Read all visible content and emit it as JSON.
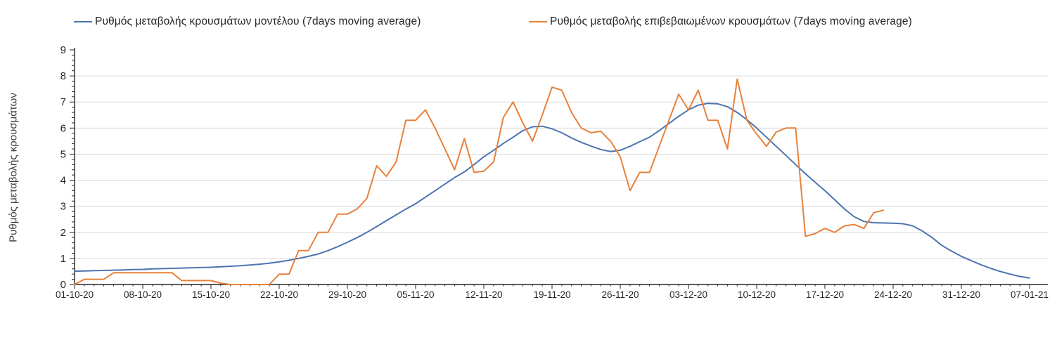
{
  "legend": {
    "items": [
      {
        "id": "model",
        "label": "Ρυθμός μεταβολής κρουσμάτων μοντέλου (7days moving average)",
        "color": "#4d74b0"
      },
      {
        "id": "confirmed",
        "label": "Ρυθμός μεταβολής επιβεβαιωμένων κρουσμάτων (7days moving average)",
        "color": "#e7813b"
      }
    ]
  },
  "axes": {
    "y_title": "Ρυθμός μεταβολής κρουσμάτων"
  },
  "colors": {
    "model_line": "#4d74b0",
    "confirmed_line": "#e7813b",
    "gridline": "#d9d9d9",
    "axis": "#262626",
    "tick_text": "#262626"
  },
  "chart_data": {
    "type": "line",
    "title": "",
    "xlabel": "",
    "ylabel": "Ρυθμός μεταβολής κρουσμάτων",
    "ylim": [
      0,
      9
    ],
    "y_ticks": [
      0,
      1,
      2,
      3,
      4,
      5,
      6,
      7,
      8,
      9
    ],
    "grid": "horizontal",
    "legend_position": "top",
    "x_unit": "days since 01-10-20 (daily points)",
    "x_tick_days": [
      0,
      7,
      14,
      21,
      28,
      35,
      42,
      49,
      56,
      63,
      70,
      77,
      84,
      91,
      98
    ],
    "x_tick_labels": [
      "01-10-20",
      "08-10-20",
      "15-10-20",
      "22-10-20",
      "29-10-20",
      "05-11-20",
      "12-11-20",
      "19-11-20",
      "26-11-20",
      "03-12-20",
      "10-12-20",
      "17-12-20",
      "24-12-20",
      "31-12-20",
      "07-01-21"
    ],
    "series": [
      {
        "name": "Ρυθμός μεταβολής κρουσμάτων μοντέλου (7days moving average)",
        "color": "#4d74b0",
        "start_day": 0,
        "values": [
          0.51,
          0.52,
          0.53,
          0.54,
          0.55,
          0.56,
          0.57,
          0.58,
          0.6,
          0.61,
          0.62,
          0.63,
          0.64,
          0.65,
          0.66,
          0.68,
          0.7,
          0.72,
          0.75,
          0.78,
          0.82,
          0.87,
          0.93,
          1.0,
          1.08,
          1.17,
          1.3,
          1.45,
          1.62,
          1.8,
          2.0,
          2.22,
          2.45,
          2.67,
          2.89,
          3.1,
          3.35,
          3.6,
          3.85,
          4.1,
          4.32,
          4.6,
          4.9,
          5.15,
          5.41,
          5.65,
          5.9,
          6.05,
          6.07,
          5.97,
          5.82,
          5.62,
          5.45,
          5.31,
          5.18,
          5.1,
          5.15,
          5.3,
          5.48,
          5.65,
          5.9,
          6.18,
          6.45,
          6.7,
          6.88,
          6.95,
          6.93,
          6.82,
          6.6,
          6.32,
          6.0,
          5.65,
          5.3,
          4.95,
          4.6,
          4.25,
          3.92,
          3.6,
          3.25,
          2.9,
          2.6,
          2.42,
          2.37,
          2.36,
          2.35,
          2.33,
          2.25,
          2.05,
          1.8,
          1.5,
          1.28,
          1.08,
          0.92,
          0.76,
          0.62,
          0.5,
          0.4,
          0.31,
          0.25
        ]
      },
      {
        "name": "Ρυθμός μεταβολής επιβεβαιωμένων κρουσμάτων (7days moving average)",
        "color": "#e7813b",
        "start_day": 0,
        "values": [
          0.0,
          0.2,
          0.2,
          0.2,
          0.45,
          0.45,
          0.45,
          0.45,
          0.45,
          0.45,
          0.45,
          0.15,
          0.15,
          0.15,
          0.15,
          0.05,
          0.0,
          0.0,
          0.0,
          0.0,
          0.0,
          0.4,
          0.4,
          1.3,
          1.3,
          2.0,
          2.0,
          2.7,
          2.7,
          2.9,
          3.3,
          4.55,
          4.15,
          4.7,
          6.3,
          6.3,
          6.7,
          6.0,
          5.2,
          4.4,
          5.6,
          4.3,
          4.35,
          4.7,
          6.4,
          7.0,
          6.2,
          5.5,
          6.5,
          7.57,
          7.45,
          6.6,
          6.0,
          5.82,
          5.88,
          5.5,
          4.9,
          3.6,
          4.3,
          4.3,
          5.3,
          6.3,
          7.3,
          6.7,
          7.45,
          6.3,
          6.3,
          5.2,
          7.88,
          6.3,
          5.77,
          5.3,
          5.85,
          6.0,
          6.0,
          1.85,
          1.95,
          2.15,
          2.0,
          2.25,
          2.3,
          2.15,
          2.75,
          2.85
        ]
      }
    ]
  }
}
